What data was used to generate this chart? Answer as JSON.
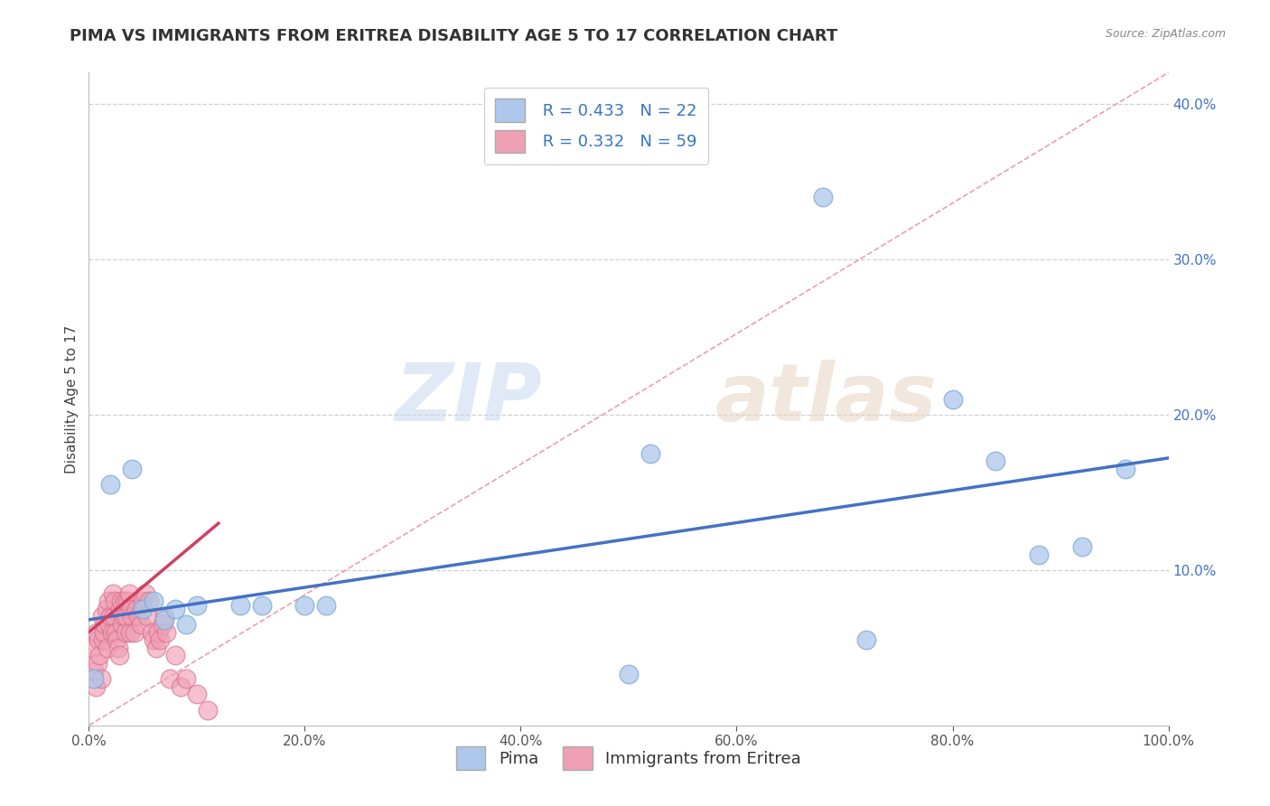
{
  "title": "PIMA VS IMMIGRANTS FROM ERITREA DISABILITY AGE 5 TO 17 CORRELATION CHART",
  "source_text": "Source: ZipAtlas.com",
  "ylabel": "Disability Age 5 to 17",
  "watermark_zip": "ZIP",
  "watermark_atlas": "atlas",
  "legend_label1": "Pima",
  "legend_label2": "Immigrants from Eritrea",
  "R1": 0.433,
  "N1": 22,
  "R2": 0.332,
  "N2": 59,
  "color_blue": "#adc8eb",
  "color_pink": "#f0a0b5",
  "color_blue_edge": "#7aaad4",
  "color_pink_edge": "#d87090",
  "trendline_blue": "#4472c4",
  "trendline_pink": "#d04060",
  "dashed_diag_color": "#e8a0b0",
  "grid_color": "#d0d0d0",
  "xlim": [
    0,
    1.0
  ],
  "ylim": [
    0,
    0.42
  ],
  "xticks": [
    0,
    0.2,
    0.4,
    0.6,
    0.8,
    1.0
  ],
  "yticks": [
    0.1,
    0.2,
    0.3,
    0.4
  ],
  "pima_x": [
    0.005,
    0.02,
    0.04,
    0.05,
    0.06,
    0.07,
    0.08,
    0.09,
    0.1,
    0.14,
    0.16,
    0.2,
    0.22,
    0.5,
    0.52,
    0.68,
    0.72,
    0.8,
    0.84,
    0.88,
    0.92,
    0.96
  ],
  "pima_y": [
    0.03,
    0.155,
    0.165,
    0.075,
    0.08,
    0.068,
    0.075,
    0.065,
    0.077,
    0.077,
    0.077,
    0.077,
    0.077,
    0.033,
    0.175,
    0.34,
    0.055,
    0.21,
    0.17,
    0.11,
    0.115,
    0.165
  ],
  "eritrea_x": [
    0.003,
    0.005,
    0.006,
    0.007,
    0.008,
    0.009,
    0.01,
    0.011,
    0.012,
    0.013,
    0.014,
    0.015,
    0.016,
    0.017,
    0.018,
    0.019,
    0.02,
    0.021,
    0.022,
    0.023,
    0.024,
    0.025,
    0.026,
    0.027,
    0.028,
    0.029,
    0.03,
    0.031,
    0.032,
    0.033,
    0.034,
    0.035,
    0.036,
    0.037,
    0.038,
    0.039,
    0.04,
    0.042,
    0.044,
    0.046,
    0.048,
    0.05,
    0.052,
    0.054,
    0.056,
    0.058,
    0.06,
    0.062,
    0.064,
    0.066,
    0.068,
    0.07,
    0.072,
    0.075,
    0.08,
    0.085,
    0.09,
    0.1,
    0.11
  ],
  "eritrea_y": [
    0.05,
    0.035,
    0.025,
    0.06,
    0.04,
    0.055,
    0.045,
    0.03,
    0.07,
    0.055,
    0.06,
    0.065,
    0.075,
    0.05,
    0.08,
    0.065,
    0.07,
    0.06,
    0.085,
    0.07,
    0.08,
    0.06,
    0.055,
    0.05,
    0.045,
    0.075,
    0.08,
    0.065,
    0.07,
    0.08,
    0.06,
    0.07,
    0.08,
    0.085,
    0.06,
    0.075,
    0.07,
    0.06,
    0.075,
    0.07,
    0.065,
    0.08,
    0.085,
    0.07,
    0.08,
    0.06,
    0.055,
    0.05,
    0.06,
    0.055,
    0.065,
    0.07,
    0.06,
    0.03,
    0.045,
    0.025,
    0.03,
    0.02,
    0.01
  ],
  "title_fontsize": 13,
  "axis_fontsize": 11,
  "tick_fontsize": 11,
  "legend_fontsize": 13
}
